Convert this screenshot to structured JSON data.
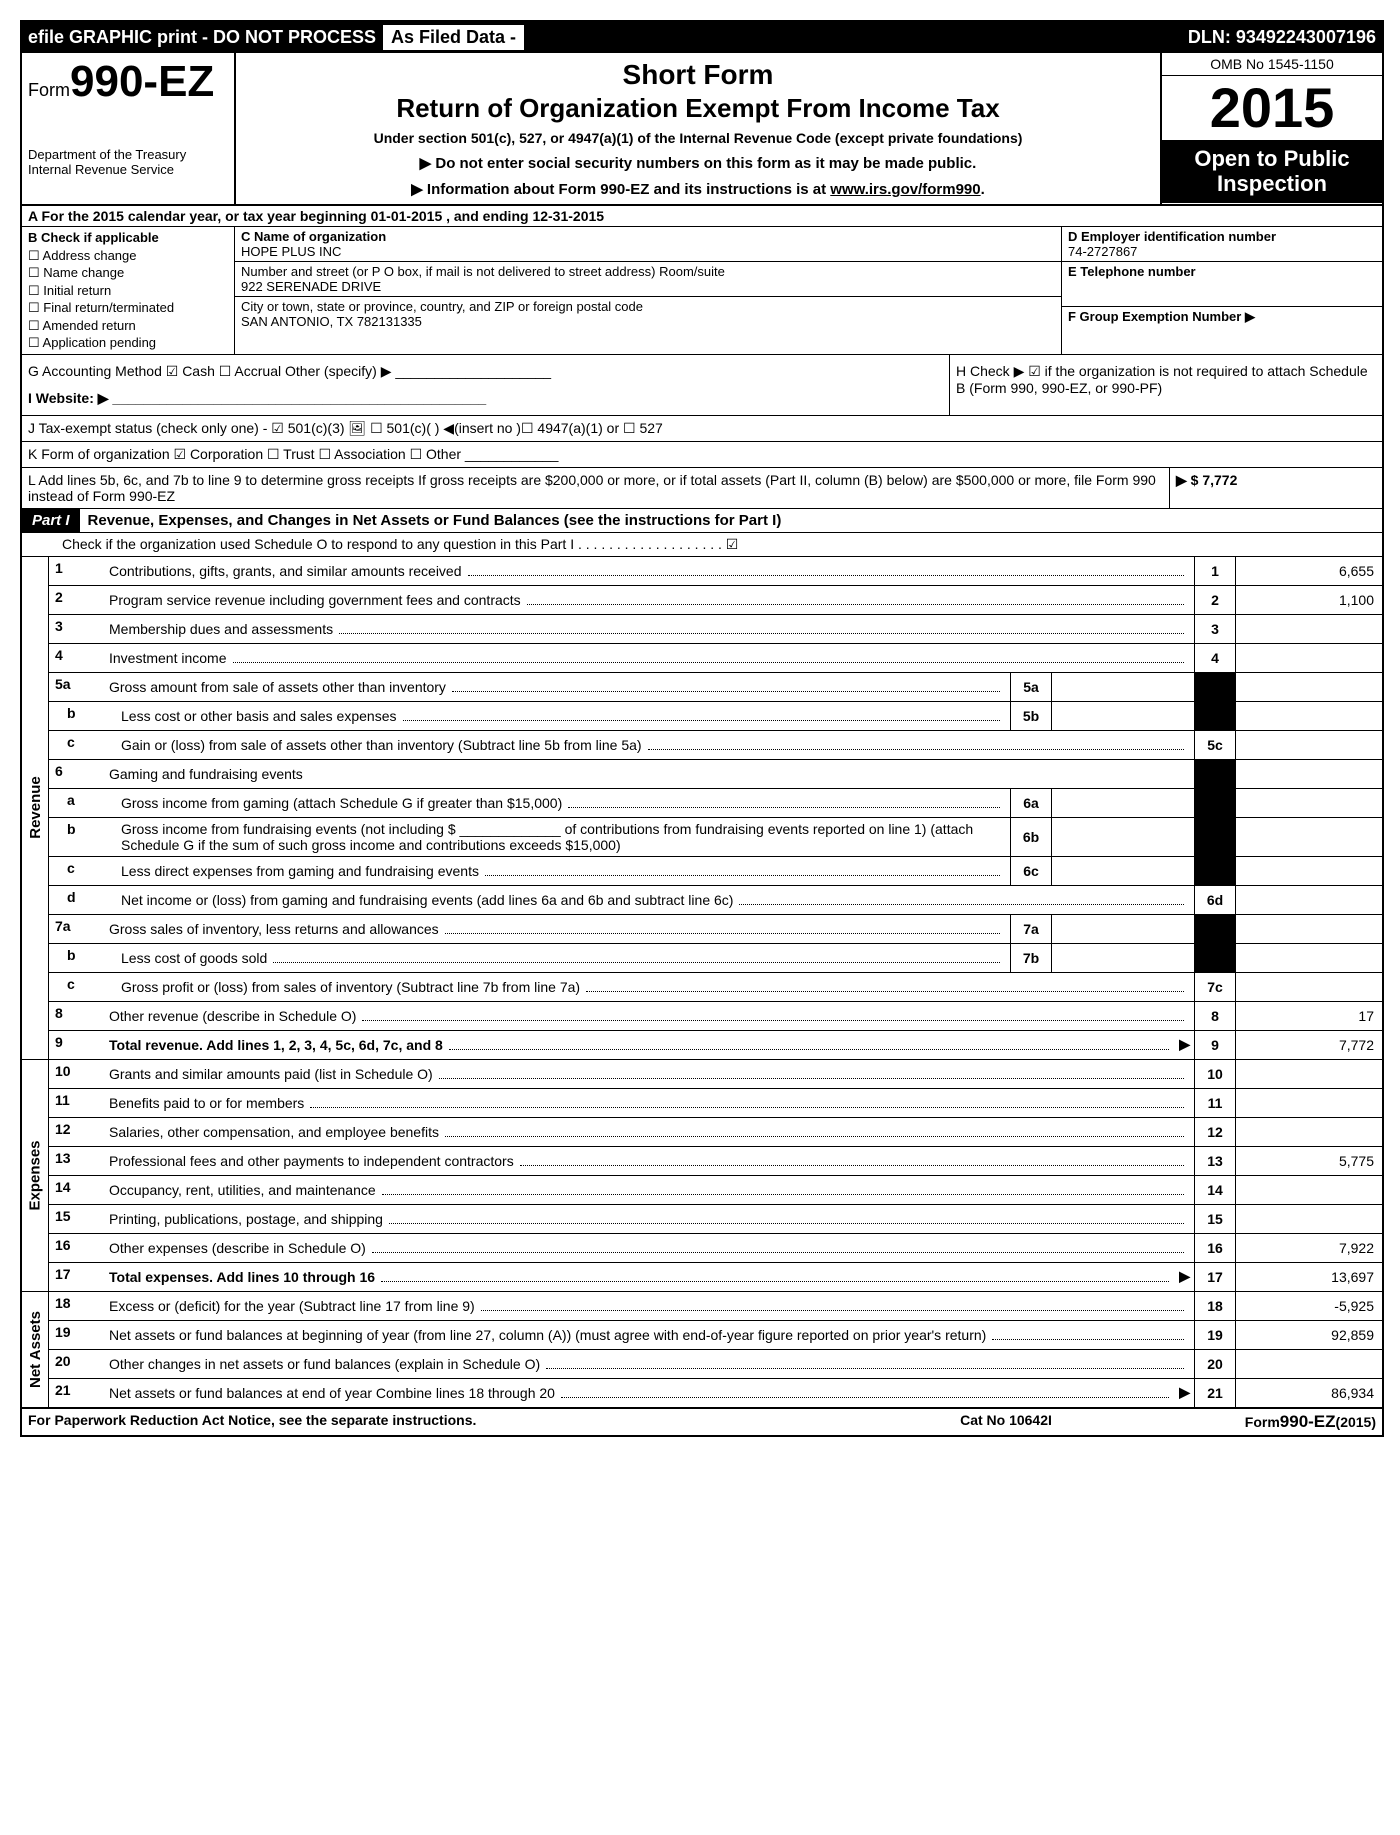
{
  "topbar": {
    "efile": "efile GRAPHIC print - DO NOT PROCESS",
    "asfiled": "As Filed Data -",
    "dln_label": "DLN:",
    "dln": "93492243007196"
  },
  "header": {
    "form_prefix": "Form",
    "form_number": "990-EZ",
    "dept1": "Department of the Treasury",
    "dept2": "Internal Revenue Service",
    "title1": "Short Form",
    "title2": "Return of Organization Exempt From Income Tax",
    "subtitle": "Under section 501(c), 527, or 4947(a)(1) of the Internal Revenue Code (except private foundations)",
    "note1": "▶ Do not enter social security numbers on this form as it may be made public.",
    "note2": "▶ Information about Form 990-EZ and its instructions is at ",
    "note2_link": "www.irs.gov/form990",
    "note2_suffix": ".",
    "omb": "OMB No 1545-1150",
    "year": "2015",
    "open1": "Open to Public",
    "open2": "Inspection"
  },
  "rowA": "A  For the 2015 calendar year, or tax year beginning 01-01-2015           , and ending 12-31-2015",
  "colB": {
    "head": "B  Check if applicable",
    "items": [
      "☐ Address change",
      "☐ Name change",
      "☐ Initial return",
      "☐ Final return/terminated",
      "☐ Amended return",
      "☐ Application pending"
    ]
  },
  "colC": {
    "name_label": "C Name of organization",
    "name": "HOPE PLUS INC",
    "street_label": "Number and street (or P  O  box, if mail is not delivered to street address) Room/suite",
    "street": "922 SERENADE DRIVE",
    "city_label": "City or town, state or province, country, and ZIP or foreign postal code",
    "city": "SAN ANTONIO, TX  782131335"
  },
  "colDEF": {
    "d_label": "D Employer identification number",
    "d_val": "74-2727867",
    "e_label": "E Telephone number",
    "f_label": "F Group Exemption Number  ▶"
  },
  "rowG": "G Accounting Method   ☑ Cash  ☐ Accrual  Other (specify) ▶ ____________________",
  "rowH": "H  Check ▶ ☑ if the organization is not required to attach Schedule B (Form 990, 990-EZ, or 990-PF)",
  "rowI": "I Website: ▶ ________________________________________________",
  "rowJ": "J Tax-exempt status (check only one) - ☑ 501(c)(3) 🖼  ☐ 501(c)(  ) ◀(insert no )☐ 4947(a)(1) or ☐ 527",
  "rowK": "K Form of organization   ☑ Corporation  ☐ Trust  ☐ Association  ☐ Other ____________",
  "rowL": {
    "text": "L Add lines 5b, 6c, and 7b to line 9 to determine gross receipts  If gross receipts are $200,000 or more, or if total assets (Part II, column (B) below) are $500,000 or more, file Form 990 instead of Form 990-EZ",
    "amount": "▶ $ 7,772"
  },
  "part1": {
    "label": "Part I",
    "title": "Revenue, Expenses, and Changes in Net Assets or Fund Balances (see the instructions for Part I)",
    "check": "Check if the organization used Schedule O to respond to any question in this Part I . . . . . . . . . . . . . . . . . . . ☑"
  },
  "sections": {
    "revenue": "Revenue",
    "expenses": "Expenses",
    "netassets": "Net Assets"
  },
  "lines": {
    "l1": {
      "n": "1",
      "d": "Contributions, gifts, grants, and similar amounts received",
      "bn": "1",
      "bv": "6,655"
    },
    "l2": {
      "n": "2",
      "d": "Program service revenue including government fees and contracts",
      "bn": "2",
      "bv": "1,100"
    },
    "l3": {
      "n": "3",
      "d": "Membership dues and assessments",
      "bn": "3",
      "bv": ""
    },
    "l4": {
      "n": "4",
      "d": "Investment income",
      "bn": "4",
      "bv": ""
    },
    "l5a": {
      "n": "5a",
      "d": "Gross amount from sale of assets other than inventory",
      "in": "5a"
    },
    "l5b": {
      "n": "b",
      "d": "Less  cost or other basis and sales expenses",
      "in": "5b"
    },
    "l5c": {
      "n": "c",
      "d": "Gain or (loss) from sale of assets other than inventory (Subtract line 5b from line 5a)",
      "bn": "5c",
      "bv": ""
    },
    "l6": {
      "n": "6",
      "d": "Gaming and fundraising events"
    },
    "l6a": {
      "n": "a",
      "d": "Gross income from gaming (attach Schedule G if greater than $15,000)",
      "in": "6a"
    },
    "l6b": {
      "n": "b",
      "d": "Gross income from fundraising events (not including $ _____________ of contributions from fundraising events reported on line 1) (attach Schedule G if the sum of such gross income and contributions exceeds $15,000)",
      "in": "6b"
    },
    "l6c": {
      "n": "c",
      "d": "Less  direct expenses from gaming and fundraising events",
      "in": "6c"
    },
    "l6d": {
      "n": "d",
      "d": "Net income or (loss) from gaming and fundraising events (add lines 6a and 6b and subtract line 6c)",
      "bn": "6d",
      "bv": ""
    },
    "l7a": {
      "n": "7a",
      "d": "Gross sales of inventory, less returns and allowances",
      "in": "7a"
    },
    "l7b": {
      "n": "b",
      "d": "Less  cost of goods sold",
      "in": "7b"
    },
    "l7c": {
      "n": "c",
      "d": "Gross profit or (loss) from sales of inventory (Subtract line 7b from line 7a)",
      "bn": "7c",
      "bv": ""
    },
    "l8": {
      "n": "8",
      "d": "Other revenue (describe in Schedule O)",
      "bn": "8",
      "bv": "17"
    },
    "l9": {
      "n": "9",
      "d": "Total revenue. Add lines 1, 2, 3, 4, 5c, 6d, 7c, and 8",
      "arrow": "▶",
      "bn": "9",
      "bv": "7,772",
      "bold": true
    },
    "l10": {
      "n": "10",
      "d": "Grants and similar amounts paid (list in Schedule O)",
      "bn": "10",
      "bv": ""
    },
    "l11": {
      "n": "11",
      "d": "Benefits paid to or for members",
      "bn": "11",
      "bv": ""
    },
    "l12": {
      "n": "12",
      "d": "Salaries, other compensation, and employee benefits",
      "bn": "12",
      "bv": ""
    },
    "l13": {
      "n": "13",
      "d": "Professional fees and other payments to independent contractors",
      "bn": "13",
      "bv": "5,775"
    },
    "l14": {
      "n": "14",
      "d": "Occupancy, rent, utilities, and maintenance",
      "bn": "14",
      "bv": ""
    },
    "l15": {
      "n": "15",
      "d": "Printing, publications, postage, and shipping",
      "bn": "15",
      "bv": ""
    },
    "l16": {
      "n": "16",
      "d": "Other expenses (describe in Schedule O)",
      "bn": "16",
      "bv": "7,922"
    },
    "l17": {
      "n": "17",
      "d": "Total expenses. Add lines 10 through 16",
      "arrow": "▶",
      "bn": "17",
      "bv": "13,697",
      "bold": true
    },
    "l18": {
      "n": "18",
      "d": "Excess or (deficit) for the year (Subtract line 17 from line 9)",
      "bn": "18",
      "bv": "-5,925"
    },
    "l19": {
      "n": "19",
      "d": "Net assets or fund balances at beginning of year (from line 27, column (A)) (must agree with end-of-year figure reported on prior year's return)",
      "bn": "19",
      "bv": "92,859"
    },
    "l20": {
      "n": "20",
      "d": "Other changes in net assets or fund balances (explain in Schedule O)",
      "bn": "20",
      "bv": ""
    },
    "l21": {
      "n": "21",
      "d": "Net assets or fund balances at end of year  Combine lines 18 through 20",
      "arrow": "▶",
      "bn": "21",
      "bv": "86,934"
    }
  },
  "footer": {
    "left": "For Paperwork Reduction Act Notice, see the separate instructions.",
    "center": "Cat No 10642I",
    "right_prefix": "Form",
    "right_form": "990-EZ",
    "right_suffix": "(2015)"
  }
}
